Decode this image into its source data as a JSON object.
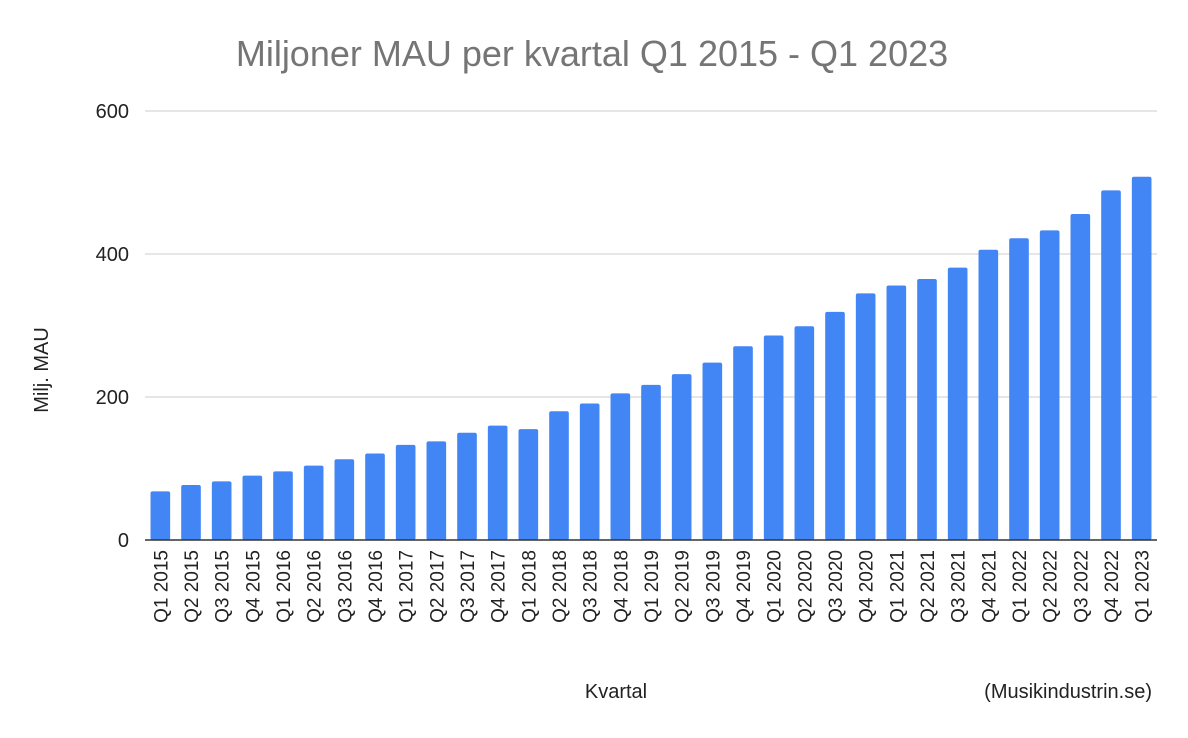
{
  "chart_data": {
    "type": "bar",
    "title": "Miljoner MAU per kvartal Q1 2015 - Q1 2023",
    "xlabel": "Kvartal",
    "ylabel": "Milj. MAU",
    "source": "(Musikindustrin.se)",
    "ylim": [
      0,
      600
    ],
    "yticks": [
      0,
      200,
      400,
      600
    ],
    "grid": true,
    "legend": "none",
    "bar_color": "#4285f4",
    "categories": [
      "Q1 2015",
      "Q2 2015",
      "Q3 2015",
      "Q4 2015",
      "Q1 2016",
      "Q2 2016",
      "Q3 2016",
      "Q4 2016",
      "Q1 2017",
      "Q2 2017",
      "Q3 2017",
      "Q4 2017",
      "Q1 2018",
      "Q2 2018",
      "Q3 2018",
      "Q4 2018",
      "Q1 2019",
      "Q2 2019",
      "Q3 2019",
      "Q4 2019",
      "Q1 2020",
      "Q2 2020",
      "Q3 2020",
      "Q4 2020",
      "Q1 2021",
      "Q2 2021",
      "Q3 2021",
      "Q4 2021",
      "Q1 2022",
      "Q2 2022",
      "Q3 2022",
      "Q4 2022",
      "Q1 2023"
    ],
    "values": [
      68,
      77,
      82,
      90,
      96,
      104,
      113,
      121,
      133,
      138,
      150,
      160,
      155,
      180,
      191,
      205,
      217,
      232,
      248,
      271,
      286,
      299,
      319,
      345,
      356,
      365,
      381,
      406,
      422,
      433,
      456,
      489,
      508
    ]
  }
}
